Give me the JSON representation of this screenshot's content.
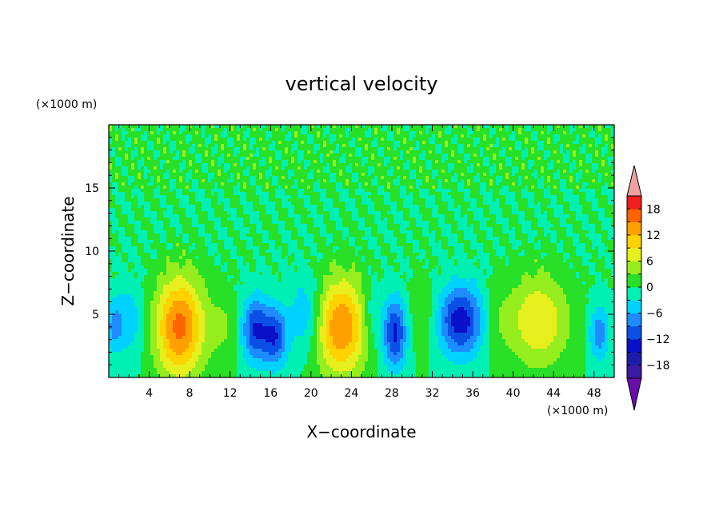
{
  "chart_data": {
    "type": "heatmap",
    "title": "vertical velocity",
    "xlabel": "X−coordinate",
    "ylabel": "Z−coordinate",
    "x_unit": "(×1000 m)",
    "y_unit": "(×1000 m)",
    "xlim": [
      0,
      50
    ],
    "ylim": [
      0,
      20
    ],
    "x_ticks": [
      4,
      8,
      12,
      16,
      20,
      24,
      28,
      32,
      36,
      40,
      44,
      48
    ],
    "y_ticks": [
      5,
      10,
      15
    ],
    "colorbar": {
      "levels": [
        -21,
        -18,
        -15,
        -12,
        -9,
        -6,
        -3,
        0,
        3,
        6,
        9,
        12,
        15,
        18,
        21
      ],
      "tick_labels": [
        "18",
        "12",
        "6",
        "0",
        "−6",
        "−12",
        "−18"
      ],
      "tick_values": [
        18,
        12,
        6,
        0,
        -6,
        -12,
        -18
      ],
      "extend": "both",
      "colors": [
        "#6a0dad",
        "#3a1a9e",
        "#1c1ca8",
        "#0a10c8",
        "#0a50e6",
        "#1e8cff",
        "#00d2ff",
        "#00f0b4",
        "#28e028",
        "#96ee1e",
        "#e6f01e",
        "#ffd200",
        "#ffa000",
        "#ff6400",
        "#f01e1e",
        "#f0a0a0"
      ]
    },
    "cells": [
      {
        "x": 7,
        "z": 4,
        "sx": 2.4,
        "sz": 4.0,
        "amp": 16
      },
      {
        "x": 14.5,
        "z": 3.8,
        "sx": 1.4,
        "sz": 2.6,
        "amp": -12
      },
      {
        "x": 16.5,
        "z": 3.2,
        "sx": 1.2,
        "sz": 2.4,
        "amp": -11
      },
      {
        "x": 23,
        "z": 4,
        "sx": 2.5,
        "sz": 3.8,
        "amp": 15
      },
      {
        "x": 28.3,
        "z": 3.5,
        "sx": 1.2,
        "sz": 2.8,
        "amp": -13
      },
      {
        "x": 34.8,
        "z": 4.5,
        "sx": 2.2,
        "sz": 2.8,
        "amp": -14
      },
      {
        "x": 42.5,
        "z": 4.5,
        "sx": 3.0,
        "sz": 3.6,
        "amp": 9
      },
      {
        "x": 48.5,
        "z": 3.5,
        "sx": 1.0,
        "sz": 2.2,
        "amp": -8
      },
      {
        "x": 11.5,
        "z": 4,
        "sx": 1.5,
        "sz": 3.0,
        "amp": 3
      },
      {
        "x": 19.5,
        "z": 5,
        "sx": 1.6,
        "sz": 3.0,
        "amp": -6
      },
      {
        "x": 26,
        "z": 5,
        "sx": 1.0,
        "sz": 2.5,
        "amp": -4
      },
      {
        "x": 31,
        "z": 5,
        "sx": 1.4,
        "sz": 3.0,
        "amp": 3
      },
      {
        "x": 38.5,
        "z": 4.5,
        "sx": 1.2,
        "sz": 3.0,
        "amp": 2
      },
      {
        "x": 2,
        "z": 4.5,
        "sx": 1.5,
        "sz": 3.0,
        "amp": -5
      },
      {
        "x": 0.5,
        "z": 4,
        "sx": 0.8,
        "sz": 2.0,
        "amp": -6
      }
    ]
  }
}
